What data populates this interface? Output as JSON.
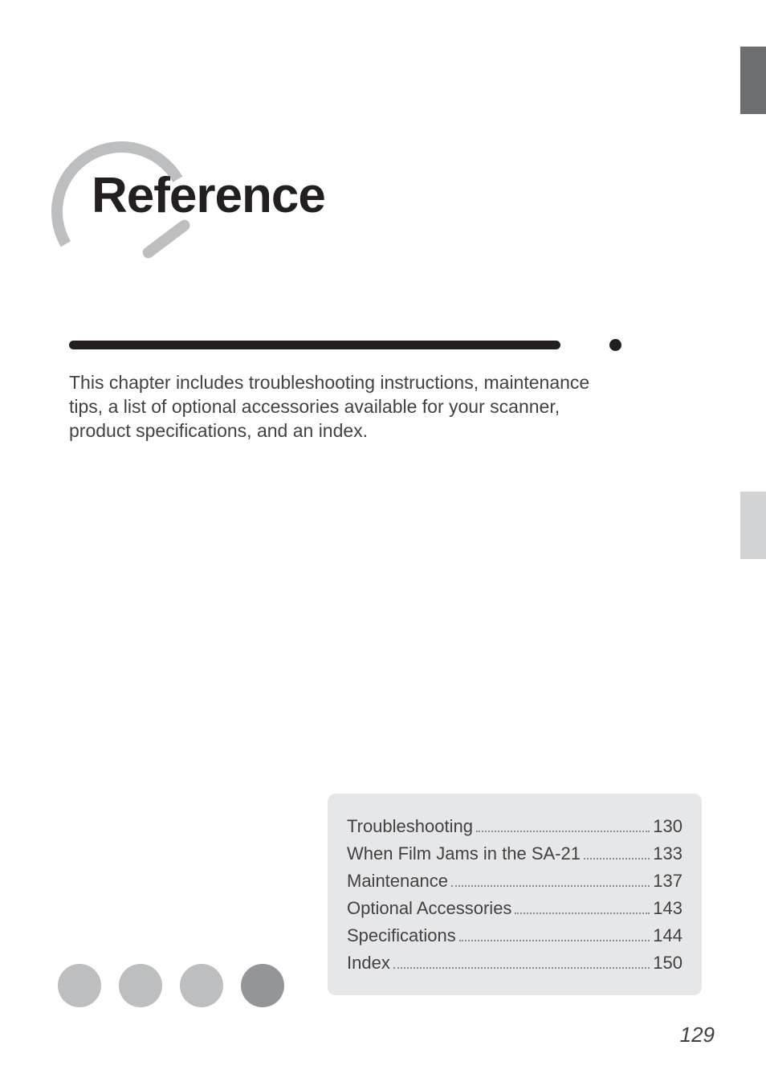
{
  "chapter": {
    "title": "Reference",
    "title_color": "#231f20",
    "title_fontsize": 62,
    "oval_color": "#bcbec0"
  },
  "divider": {
    "bar_color": "#231f20",
    "dot_color": "#231f20"
  },
  "intro": {
    "text": "This chapter includes troubleshooting instructions, maintenance tips, a list of optional accessories available for your scanner, product specifications, and an index.",
    "fontsize": 23,
    "color": "#414042"
  },
  "side_tabs": {
    "top_color": "#6d6e71",
    "mid_color": "#d1d3d4"
  },
  "toc": {
    "background_color": "#e6e7e8",
    "text_color": "#414042",
    "fontsize": 22,
    "items": [
      {
        "label": "Troubleshooting",
        "page": "130"
      },
      {
        "label": "When Film Jams in the SA-21",
        "page": "133"
      },
      {
        "label": "Maintenance",
        "page": "137"
      },
      {
        "label": "Optional Accessories",
        "page": "143"
      },
      {
        "label": "Specifications",
        "page": "144"
      },
      {
        "label": "Index",
        "page": "150"
      }
    ]
  },
  "footer_dots": {
    "light_color": "#bcbec0",
    "dark_color": "#939598",
    "count": 4,
    "dark_index": 3
  },
  "page_number": {
    "value": "129",
    "fontsize": 26,
    "color": "#414042"
  }
}
